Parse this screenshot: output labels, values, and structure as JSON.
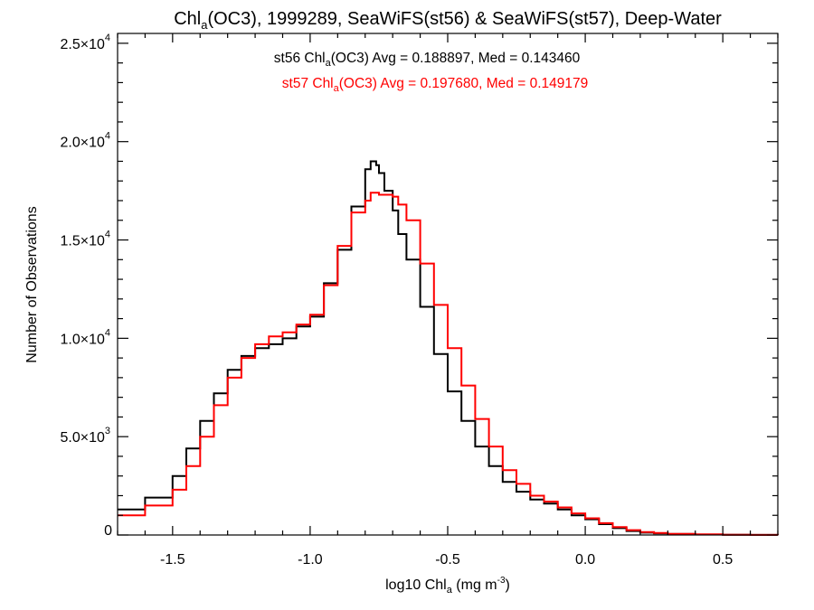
{
  "chart_data": {
    "type": "line",
    "title": "Chl_a(OC3), 1999289, SeaWiFS(st56) & SeaWiFS(st57), Deep-Water",
    "title_parts": {
      "pre": "Chl",
      "sub": "a",
      "post": "(OC3), 1999289, SeaWiFS(st56) & SeaWiFS(st57), Deep-Water"
    },
    "xlabel": "log10 Chl_a (mg m^-3)",
    "xlabel_parts": {
      "pre": "log10 Chl",
      "sub": "a",
      "mid": " (mg m",
      "sup": "-3",
      "post": ")"
    },
    "ylabel": "Number of Observations",
    "xlim": [
      -1.7,
      0.7
    ],
    "ylim": [
      0,
      25500
    ],
    "xticks": [
      -1.5,
      -1.0,
      -0.5,
      0.0,
      0.5
    ],
    "xtick_labels": [
      "-1.5",
      "-1.0",
      "-0.5",
      "0.0",
      "0.5"
    ],
    "yticks": [
      {
        "value": 0,
        "mant": "0",
        "exp": ""
      },
      {
        "value": 5000,
        "mant": "5.0×10",
        "exp": "3"
      },
      {
        "value": 10000,
        "mant": "1.0×10",
        "exp": "4"
      },
      {
        "value": 15000,
        "mant": "1.5×10",
        "exp": "4"
      },
      {
        "value": 20000,
        "mant": "2.0×10",
        "exp": "4"
      },
      {
        "value": 25000,
        "mant": "2.5×10",
        "exp": "4"
      }
    ],
    "grid": false,
    "step_style": "histogram",
    "x": [
      -1.7,
      -1.6,
      -1.5,
      -1.45,
      -1.4,
      -1.35,
      -1.3,
      -1.25,
      -1.2,
      -1.15,
      -1.1,
      -1.05,
      -1.0,
      -0.95,
      -0.9,
      -0.85,
      -0.8,
      -0.78,
      -0.76,
      -0.75,
      -0.73,
      -0.7,
      -0.68,
      -0.65,
      -0.6,
      -0.55,
      -0.5,
      -0.45,
      -0.4,
      -0.35,
      -0.3,
      -0.25,
      -0.2,
      -0.15,
      -0.1,
      -0.05,
      0.0,
      0.05,
      0.1,
      0.15,
      0.2,
      0.25,
      0.3,
      0.4,
      0.5,
      0.6,
      0.7
    ],
    "series": [
      {
        "name": "st56",
        "color": "#000000",
        "values": [
          1300,
          1900,
          3000,
          4400,
          5800,
          7200,
          8400,
          9100,
          9500,
          9700,
          10000,
          10600,
          11100,
          12800,
          14500,
          16700,
          18600,
          19000,
          18800,
          18400,
          17500,
          16500,
          15300,
          14000,
          11600,
          9200,
          7300,
          5800,
          4500,
          3500,
          2700,
          2200,
          1800,
          1600,
          1300,
          1000,
          800,
          550,
          350,
          200,
          120,
          80,
          50,
          25,
          12,
          5,
          0
        ]
      },
      {
        "name": "st57",
        "color": "#ff0000",
        "values": [
          1000,
          1500,
          2300,
          3500,
          5000,
          6600,
          8000,
          9000,
          9700,
          10100,
          10300,
          10700,
          11200,
          12700,
          14700,
          16400,
          17000,
          17400,
          17400,
          17300,
          17300,
          17200,
          16800,
          16000,
          13800,
          11700,
          9500,
          7600,
          5900,
          4500,
          3300,
          2600,
          2000,
          1700,
          1400,
          1100,
          850,
          600,
          400,
          250,
          150,
          100,
          60,
          30,
          15,
          6,
          0
        ]
      }
    ],
    "annotations": [
      {
        "series": "st56",
        "color": "#000000",
        "pre": "st56 Chl",
        "sub": "a",
        "post": "(OC3) Avg = 0.188897, Med = 0.143460",
        "avg": 0.188897,
        "median": 0.14346
      },
      {
        "series": "st57",
        "color": "#ff0000",
        "pre": "st57 Chl",
        "sub": "a",
        "post": "(OC3) Avg = 0.197680, Med = 0.149179",
        "avg": 0.19768,
        "median": 0.149179
      }
    ]
  }
}
